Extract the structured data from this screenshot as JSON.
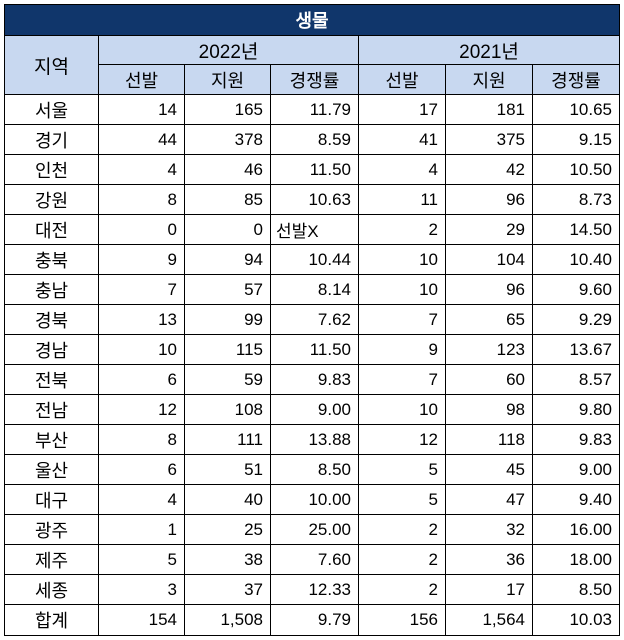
{
  "title": "생물",
  "headers": {
    "region": "지역",
    "years": [
      "2022년",
      "2021년"
    ],
    "sub": [
      "선발",
      "지원",
      "경쟁률"
    ]
  },
  "rows": [
    {
      "region": "서울",
      "y2022": [
        "14",
        "165",
        "11.79"
      ],
      "y2021": [
        "17",
        "181",
        "10.65"
      ]
    },
    {
      "region": "경기",
      "y2022": [
        "44",
        "378",
        "8.59"
      ],
      "y2021": [
        "41",
        "375",
        "9.15"
      ]
    },
    {
      "region": "인천",
      "y2022": [
        "4",
        "46",
        "11.50"
      ],
      "y2021": [
        "4",
        "42",
        "10.50"
      ]
    },
    {
      "region": "강원",
      "y2022": [
        "8",
        "85",
        "10.63"
      ],
      "y2021": [
        "11",
        "96",
        "8.73"
      ]
    },
    {
      "region": "대전",
      "y2022": [
        "0",
        "0",
        "선발X"
      ],
      "y2021": [
        "2",
        "29",
        "14.50"
      ]
    },
    {
      "region": "충북",
      "y2022": [
        "9",
        "94",
        "10.44"
      ],
      "y2021": [
        "10",
        "104",
        "10.40"
      ]
    },
    {
      "region": "충남",
      "y2022": [
        "7",
        "57",
        "8.14"
      ],
      "y2021": [
        "10",
        "96",
        "9.60"
      ]
    },
    {
      "region": "경북",
      "y2022": [
        "13",
        "99",
        "7.62"
      ],
      "y2021": [
        "7",
        "65",
        "9.29"
      ]
    },
    {
      "region": "경남",
      "y2022": [
        "10",
        "115",
        "11.50"
      ],
      "y2021": [
        "9",
        "123",
        "13.67"
      ]
    },
    {
      "region": "전북",
      "y2022": [
        "6",
        "59",
        "9.83"
      ],
      "y2021": [
        "7",
        "60",
        "8.57"
      ]
    },
    {
      "region": "전남",
      "y2022": [
        "12",
        "108",
        "9.00"
      ],
      "y2021": [
        "10",
        "98",
        "9.80"
      ]
    },
    {
      "region": "부산",
      "y2022": [
        "8",
        "111",
        "13.88"
      ],
      "y2021": [
        "12",
        "118",
        "9.83"
      ]
    },
    {
      "region": "울산",
      "y2022": [
        "6",
        "51",
        "8.50"
      ],
      "y2021": [
        "5",
        "45",
        "9.00"
      ]
    },
    {
      "region": "대구",
      "y2022": [
        "4",
        "40",
        "10.00"
      ],
      "y2021": [
        "5",
        "47",
        "9.40"
      ]
    },
    {
      "region": "광주",
      "y2022": [
        "1",
        "25",
        "25.00"
      ],
      "y2021": [
        "2",
        "32",
        "16.00"
      ]
    },
    {
      "region": "제주",
      "y2022": [
        "5",
        "38",
        "7.60"
      ],
      "y2021": [
        "2",
        "36",
        "18.00"
      ]
    },
    {
      "region": "세종",
      "y2022": [
        "3",
        "37",
        "12.33"
      ],
      "y2021": [
        "2",
        "17",
        "8.50"
      ]
    }
  ],
  "total": {
    "region": "합계",
    "y2022": [
      "154",
      "1,508",
      "9.79"
    ],
    "y2021": [
      "156",
      "1,564",
      "10.03"
    ]
  },
  "colors": {
    "title_bg": "#10366b",
    "header_bg": "#c8d8f0"
  }
}
